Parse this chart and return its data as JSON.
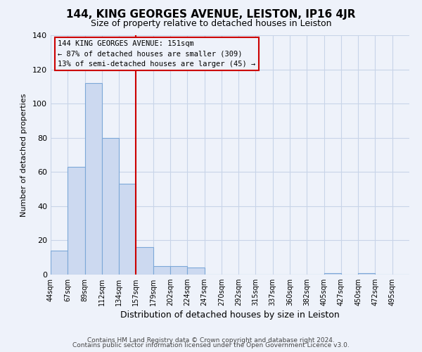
{
  "title": "144, KING GEORGES AVENUE, LEISTON, IP16 4JR",
  "subtitle": "Size of property relative to detached houses in Leiston",
  "xlabel": "Distribution of detached houses by size in Leiston",
  "ylabel": "Number of detached properties",
  "footer_lines": [
    "Contains HM Land Registry data © Crown copyright and database right 2024.",
    "Contains public sector information licensed under the Open Government Licence v3.0."
  ],
  "bin_labels": [
    "44sqm",
    "67sqm",
    "89sqm",
    "112sqm",
    "134sqm",
    "157sqm",
    "179sqm",
    "202sqm",
    "224sqm",
    "247sqm",
    "270sqm",
    "292sqm",
    "315sqm",
    "337sqm",
    "360sqm",
    "382sqm",
    "405sqm",
    "427sqm",
    "450sqm",
    "472sqm",
    "495sqm"
  ],
  "bar_heights": [
    14,
    63,
    112,
    80,
    53,
    16,
    5,
    5,
    4,
    0,
    0,
    0,
    0,
    0,
    0,
    0,
    1,
    0,
    1,
    0,
    0
  ],
  "bar_color": "#ccd9f0",
  "bar_edge_color": "#7da8d8",
  "vline_x_idx": 5,
  "vline_color": "#cc0000",
  "annotation_title": "144 KING GEORGES AVENUE: 151sqm",
  "annotation_line2": "← 87% of detached houses are smaller (309)",
  "annotation_line3": "13% of semi-detached houses are larger (45) →",
  "annotation_box_edge": "#cc0000",
  "bin_edges_sqm": [
    44,
    67,
    89,
    112,
    134,
    157,
    179,
    202,
    224,
    247,
    270,
    292,
    315,
    337,
    360,
    382,
    405,
    427,
    450,
    472,
    495,
    518
  ],
  "ylim": [
    0,
    140
  ],
  "yticks": [
    0,
    20,
    40,
    60,
    80,
    100,
    120,
    140
  ],
  "grid_color": "#c8d4e8",
  "background_color": "#eef2fa",
  "plot_bg_color": "#eef2fa"
}
